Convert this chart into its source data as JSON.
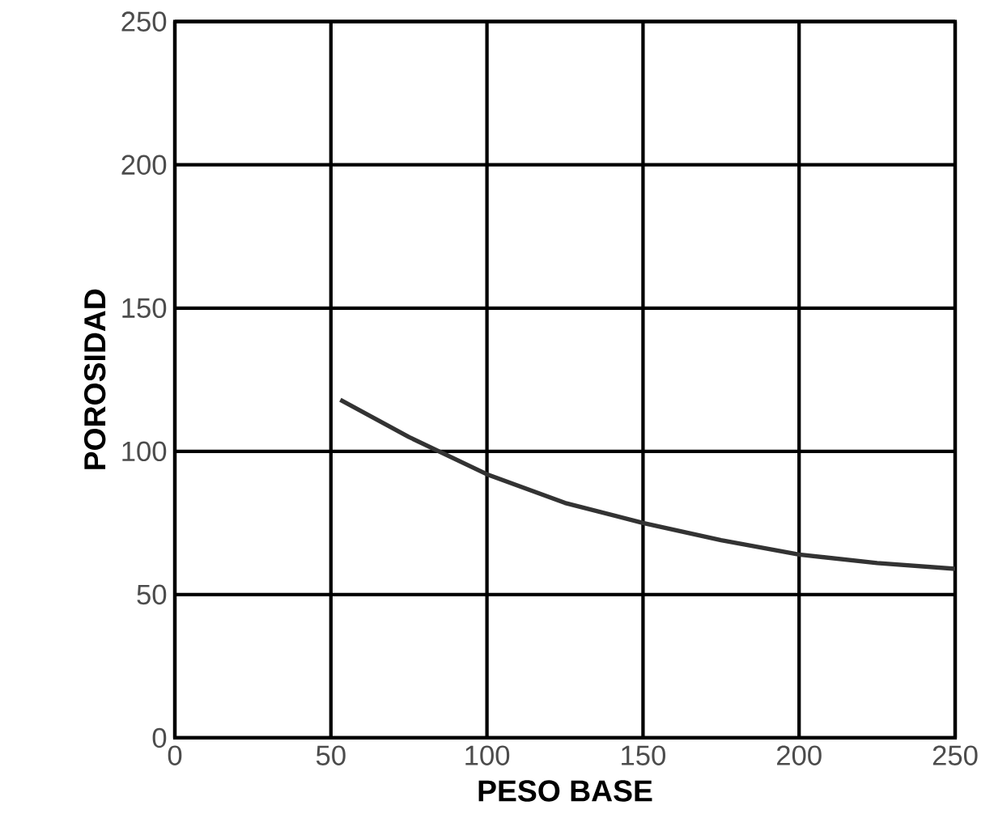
{
  "chart_data": {
    "type": "line",
    "xlabel": "PESO BASE",
    "ylabel": "POROSIDAD",
    "x": [
      53,
      75,
      100,
      125,
      150,
      175,
      200,
      225,
      250
    ],
    "series": [
      {
        "color": "#333333",
        "values": [
          118,
          105,
          92,
          82,
          75,
          69,
          64,
          61,
          59
        ]
      }
    ],
    "xlim": [
      0,
      250
    ],
    "ylim": [
      0,
      250
    ],
    "xticks": [
      0,
      50,
      100,
      150,
      200,
      250
    ],
    "yticks": [
      0,
      50,
      100,
      150,
      200,
      250
    ],
    "grid": true,
    "marker": "none",
    "line_style": "solid"
  }
}
